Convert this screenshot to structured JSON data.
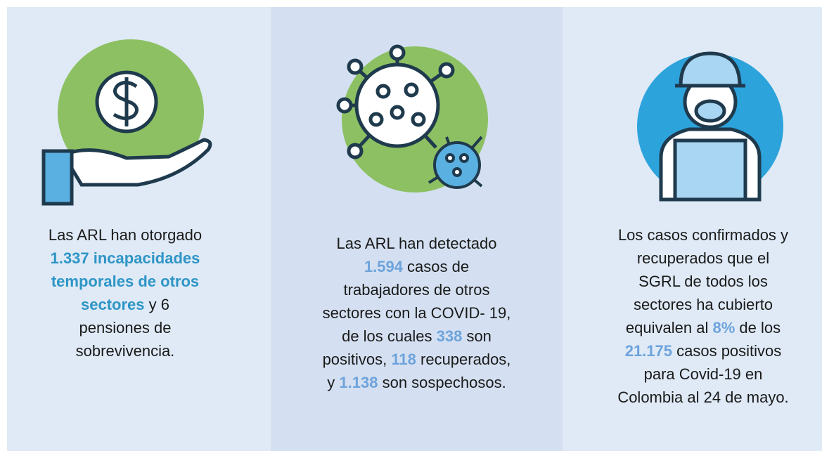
{
  "panels": [
    {
      "highlight_color": "#2e95c6",
      "lines": [
        [
          {
            "text": "Las ARL han otorgado"
          }
        ],
        [
          {
            "text": "1.337 incapacidades",
            "bold": true
          }
        ],
        [
          {
            "text": "temporales de otros",
            "bold": true
          }
        ],
        [
          {
            "text": "sectores",
            "bold": true
          },
          {
            "text": " y 6"
          }
        ],
        [
          {
            "text": "pensiones de"
          }
        ],
        [
          {
            "text": "sobrevivencia."
          }
        ]
      ]
    },
    {
      "highlight_color": "#6ea3dc",
      "lines": [
        [
          {
            "text": "Las ARL han detectado"
          }
        ],
        [
          {
            "text": "1.594",
            "bold": true
          },
          {
            "text": " casos de"
          }
        ],
        [
          {
            "text": "trabajadores de otros"
          }
        ],
        [
          {
            "text": "sectores con la COVID- 19,"
          }
        ],
        [
          {
            "text": "de los cuales "
          },
          {
            "text": "338",
            "bold": true
          },
          {
            "text": " son"
          }
        ],
        [
          {
            "text": "positivos, "
          },
          {
            "text": "118",
            "bold": true
          },
          {
            "text": " recuperados,"
          }
        ],
        [
          {
            "text": "y "
          },
          {
            "text": "1.138",
            "bold": true
          },
          {
            "text": " son sospechosos."
          }
        ]
      ]
    },
    {
      "highlight_color": "#6ea3dc",
      "lines": [
        [
          {
            "text": "Los casos confirmados y"
          }
        ],
        [
          {
            "text": "recuperados que el"
          }
        ],
        [
          {
            "text": "SGRL de todos los"
          }
        ],
        [
          {
            "text": "sectores ha cubierto"
          }
        ],
        [
          {
            "text": "equivalen al "
          },
          {
            "text": "8%",
            "bold": true
          },
          {
            "text": " de los"
          }
        ],
        [
          {
            "text": "21.175",
            "bold": true
          },
          {
            "text": " casos positivos"
          }
        ],
        [
          {
            "text": "para Covid-19 en"
          }
        ],
        [
          {
            "text": "Colombia al 24 de mayo."
          }
        ]
      ]
    }
  ]
}
